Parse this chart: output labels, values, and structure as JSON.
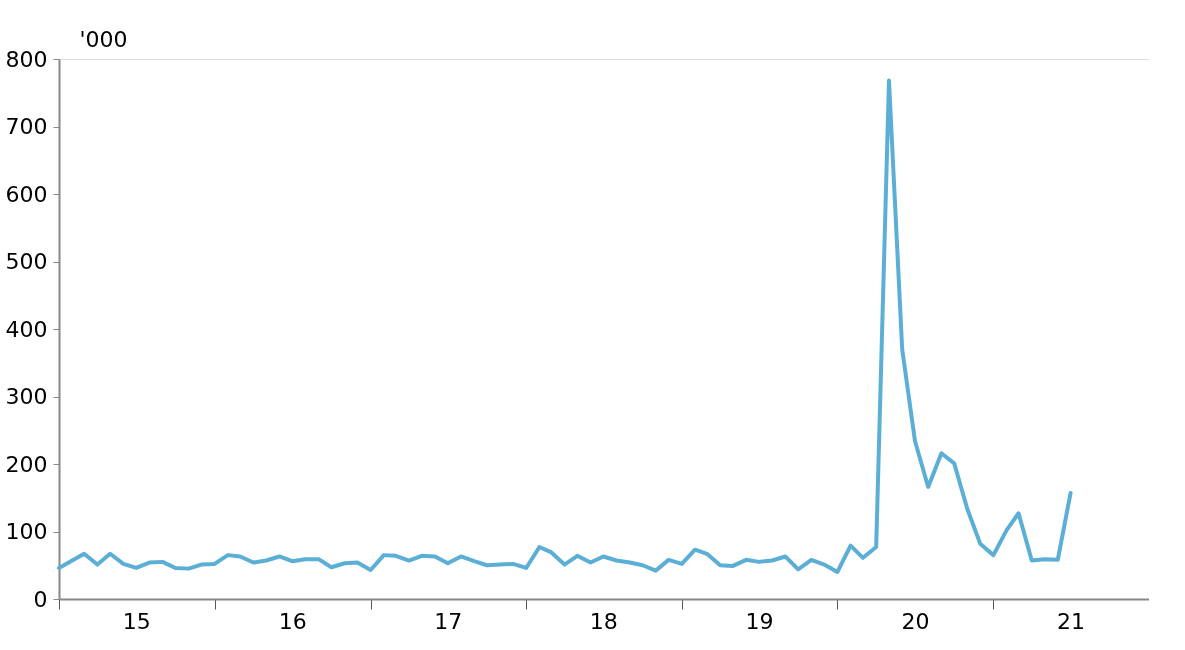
{
  "chart_data": {
    "type": "line",
    "ylabel": "'000",
    "x": [
      "2015-01",
      "2015-02",
      "2015-03",
      "2015-04",
      "2015-05",
      "2015-06",
      "2015-07",
      "2015-08",
      "2015-09",
      "2015-10",
      "2015-11",
      "2015-12",
      "2016-01",
      "2016-02",
      "2016-03",
      "2016-04",
      "2016-05",
      "2016-06",
      "2016-07",
      "2016-08",
      "2016-09",
      "2016-10",
      "2016-11",
      "2016-12",
      "2017-01",
      "2017-02",
      "2017-03",
      "2017-04",
      "2017-05",
      "2017-06",
      "2017-07",
      "2017-08",
      "2017-09",
      "2017-10",
      "2017-11",
      "2017-12",
      "2018-01",
      "2018-02",
      "2018-03",
      "2018-04",
      "2018-05",
      "2018-06",
      "2018-07",
      "2018-08",
      "2018-09",
      "2018-10",
      "2018-11",
      "2018-12",
      "2019-01",
      "2019-02",
      "2019-03",
      "2019-04",
      "2019-05",
      "2019-06",
      "2019-07",
      "2019-08",
      "2019-09",
      "2019-10",
      "2019-11",
      "2019-12",
      "2020-01",
      "2020-02",
      "2020-03",
      "2020-04",
      "2020-05",
      "2020-06",
      "2020-07",
      "2020-08",
      "2020-09",
      "2020-10",
      "2020-11",
      "2020-12",
      "2021-01",
      "2021-02",
      "2021-03",
      "2021-04",
      "2021-05",
      "2021-06",
      "2021-07"
    ],
    "series": [
      {
        "color": "#5bafd6",
        "values": [
          46,
          57,
          67,
          51,
          67,
          52,
          46,
          54,
          55,
          46,
          45,
          51,
          52,
          65,
          63,
          54,
          57,
          63,
          56,
          59,
          59,
          47,
          53,
          54,
          43,
          65,
          64,
          57,
          64,
          63,
          53,
          63,
          56,
          50,
          51,
          52,
          46,
          77,
          69,
          51,
          64,
          54,
          63,
          57,
          54,
          50,
          42,
          58,
          52,
          73,
          67,
          50,
          49,
          58,
          55,
          57,
          63,
          44,
          58,
          51,
          40,
          79,
          61,
          77,
          768,
          370,
          234,
          166,
          216,
          201,
          133,
          82,
          65,
          102,
          127,
          57,
          59,
          58,
          157
        ]
      }
    ],
    "xlim": [
      "2015-01",
      "2022-01"
    ],
    "xticks": [
      {
        "value": "2015-01",
        "label": null
      },
      {
        "value": "2015-07",
        "label": "15"
      },
      {
        "value": "2016-01",
        "label": null
      },
      {
        "value": "2016-07",
        "label": "16"
      },
      {
        "value": "2017-01",
        "label": null
      },
      {
        "value": "2017-07",
        "label": "17"
      },
      {
        "value": "2018-01",
        "label": null
      },
      {
        "value": "2018-07",
        "label": "18"
      },
      {
        "value": "2019-01",
        "label": null
      },
      {
        "value": "2019-07",
        "label": "19"
      },
      {
        "value": "2020-01",
        "label": null
      },
      {
        "value": "2020-07",
        "label": "20"
      },
      {
        "value": "2021-01",
        "label": null
      },
      {
        "value": "2021-07",
        "label": "21"
      }
    ],
    "ylim": [
      0,
      800
    ],
    "yticks": [
      0,
      100,
      200,
      300,
      400,
      500,
      600,
      700,
      800
    ],
    "grid": false,
    "marker": "none",
    "line_style": "solid"
  }
}
